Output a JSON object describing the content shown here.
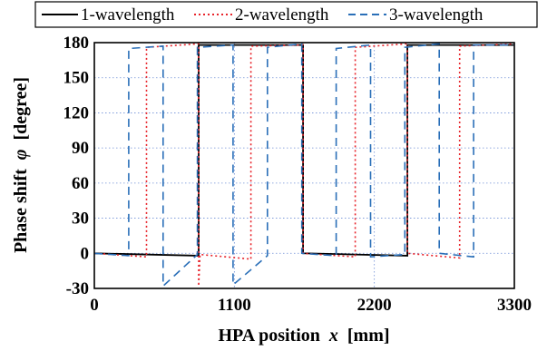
{
  "chart_data": {
    "type": "line",
    "title": "",
    "xlabel": "HPA position",
    "xlabel_var": "x",
    "xlabel_unit": "[mm]",
    "ylabel": "Phase shift",
    "ylabel_var": "φ",
    "ylabel_unit": "[degree]",
    "xlim": [
      0,
      3300
    ],
    "ylim": [
      -30,
      180
    ],
    "xticks": [
      0,
      1100,
      2200,
      3300
    ],
    "yticks": [
      -30,
      0,
      30,
      60,
      90,
      120,
      150,
      180
    ],
    "grid": true,
    "legend_position": "top",
    "series": [
      {
        "name": "1-wavelength",
        "color": "#000000",
        "style": "solid",
        "x": [
          0,
          820,
          820,
          1640,
          1640,
          2460,
          2460,
          3300
        ],
        "y": [
          0,
          -2,
          178,
          178,
          0,
          -2,
          178,
          178
        ]
      },
      {
        "name": "2-wavelength",
        "color": "#e8242b",
        "style": "dotted",
        "x": [
          0,
          410,
          410,
          820,
          820,
          830,
          830,
          1230,
          1230,
          1640,
          1640,
          2050,
          2050,
          2460,
          2460,
          2870,
          2870,
          3300
        ],
        "y": [
          0,
          -3,
          176,
          179,
          -28,
          -1,
          -1,
          -5,
          177,
          178,
          0,
          -3,
          176,
          179,
          0,
          -4,
          177,
          179
        ]
      },
      {
        "name": "3-wavelength",
        "color": "#2a6fb8",
        "style": "dashed",
        "x": [
          0,
          270,
          270,
          540,
          540,
          810,
          810,
          1090,
          1090,
          1360,
          1360,
          1630,
          1630,
          1900,
          1900,
          2170,
          2170,
          2440,
          2440,
          2710,
          2710,
          2980,
          2980,
          3300
        ],
        "y": [
          0,
          -2,
          175,
          177,
          -28,
          -1,
          176,
          178,
          -27,
          -2,
          176,
          179,
          0,
          -2,
          175,
          178,
          -3,
          -1,
          176,
          179,
          0,
          -3,
          178,
          178
        ]
      }
    ]
  }
}
